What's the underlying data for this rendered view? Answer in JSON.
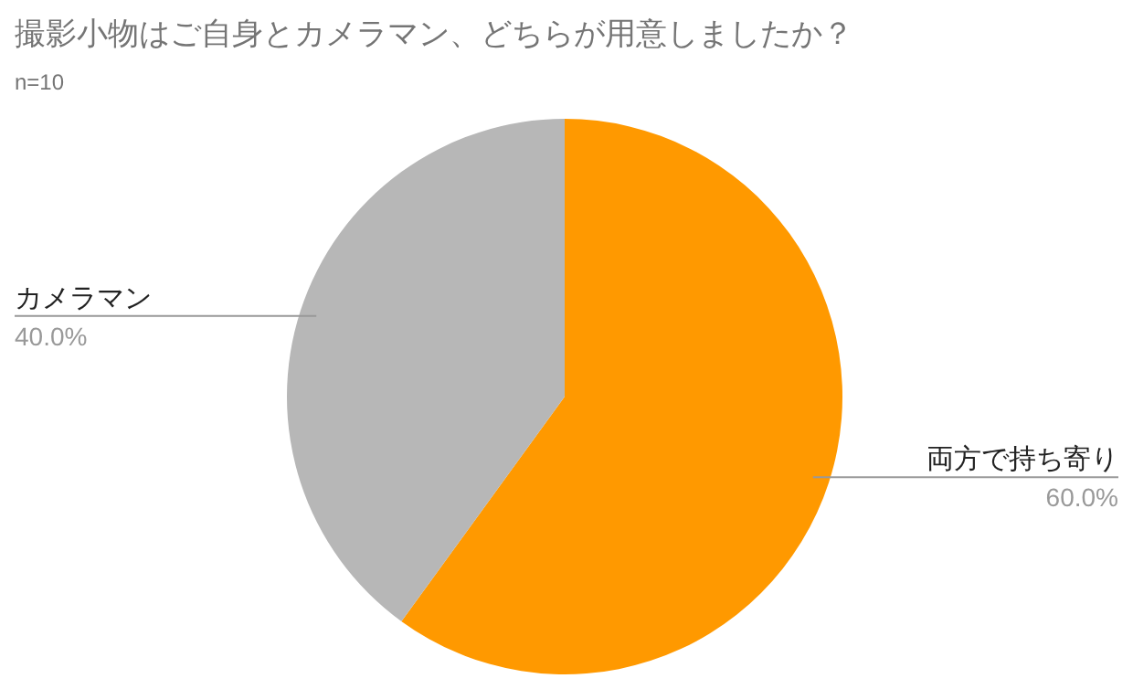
{
  "chart_data": {
    "type": "pie",
    "title": "撮影小物はご自身とカメラマン、どちらが用意しましたか？",
    "subtitle": "n=10",
    "categories": [
      "両方で持ち寄り",
      "カメラマン"
    ],
    "values": [
      60,
      40
    ],
    "colors": [
      "#ff9900",
      "#b7b7b7"
    ],
    "value_labels": [
      "60.0%",
      "40.0%"
    ]
  }
}
